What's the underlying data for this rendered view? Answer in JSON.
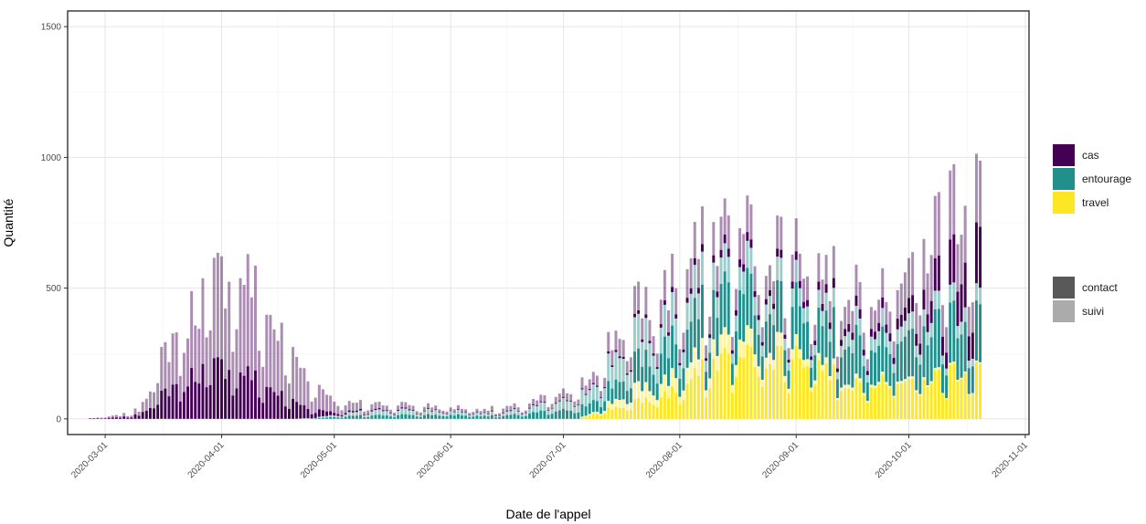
{
  "chart_data": {
    "type": "bar",
    "stacked": true,
    "xlabel": "Date de l'appel",
    "ylabel": "Quantité",
    "ylim": [
      -60,
      1560
    ],
    "xlim": [
      "2020-02-20",
      "2020-11-02"
    ],
    "y_ticks": [
      0,
      500,
      1000,
      1500
    ],
    "x_ticks": [
      "2020-03-01",
      "2020-04-01",
      "2020-05-01",
      "2020-06-01",
      "2020-07-01",
      "2020-08-01",
      "2020-09-01",
      "2020-10-01",
      "2020-11-01"
    ],
    "grid": true,
    "theme": "bw",
    "legend_position": "right",
    "legend_fill": {
      "entries": [
        {
          "label": "cas",
          "color": "#440154"
        },
        {
          "label": "entourage",
          "color": "#21908C"
        },
        {
          "label": "travel",
          "color": "#FDE725"
        }
      ]
    },
    "legend_alpha": {
      "entries": [
        {
          "label": "contact",
          "color": "#595959"
        },
        {
          "label": "suivi",
          "color": "#ababab"
        }
      ]
    },
    "suivi_alpha": 0.45,
    "date_range": [
      "2020-02-26",
      "2020-10-20"
    ],
    "series_order": [
      "travel-contact",
      "travel-suivi",
      "entourage-contact",
      "entourage-suivi",
      "cas-contact",
      "cas-suivi"
    ],
    "series_colors": {
      "cas": "#440154",
      "entourage": "#21908C",
      "travel": "#FDE725"
    },
    "anchors": {
      "cas-suivi": [
        [
          "2020-02-26",
          1
        ],
        [
          "2020-03-05",
          8
        ],
        [
          "2020-03-10",
          20
        ],
        [
          "2020-03-16",
          140
        ],
        [
          "2020-03-22",
          220
        ],
        [
          "2020-03-28",
          300
        ],
        [
          "2020-04-03",
          360
        ],
        [
          "2020-04-07",
          380
        ],
        [
          "2020-04-12",
          290
        ],
        [
          "2020-04-18",
          200
        ],
        [
          "2020-04-24",
          120
        ],
        [
          "2020-04-30",
          60
        ],
        [
          "2020-05-05",
          30
        ],
        [
          "2020-05-15",
          20
        ],
        [
          "2020-06-01",
          12
        ],
        [
          "2020-06-20",
          15
        ],
        [
          "2020-07-05",
          30
        ],
        [
          "2020-07-15",
          70
        ],
        [
          "2020-07-25",
          100
        ],
        [
          "2020-08-05",
          110
        ],
        [
          "2020-08-15",
          120
        ],
        [
          "2020-08-25",
          110
        ],
        [
          "2020-09-10",
          100
        ],
        [
          "2020-09-25",
          110
        ],
        [
          "2020-10-05",
          180
        ],
        [
          "2020-10-12",
          230
        ],
        [
          "2020-10-20",
          240
        ]
      ],
      "cas-contact": [
        [
          "2020-02-26",
          1
        ],
        [
          "2020-03-05",
          5
        ],
        [
          "2020-03-10",
          15
        ],
        [
          "2020-03-16",
          90
        ],
        [
          "2020-03-22",
          150
        ],
        [
          "2020-03-28",
          190
        ],
        [
          "2020-04-03",
          200
        ],
        [
          "2020-04-07",
          180
        ],
        [
          "2020-04-12",
          130
        ],
        [
          "2020-04-18",
          80
        ],
        [
          "2020-04-24",
          40
        ],
        [
          "2020-04-30",
          15
        ],
        [
          "2020-05-05",
          5
        ],
        [
          "2020-06-01",
          2
        ],
        [
          "2020-07-05",
          3
        ],
        [
          "2020-07-20",
          10
        ],
        [
          "2020-08-05",
          20
        ],
        [
          "2020-08-15",
          30
        ],
        [
          "2020-08-25",
          25
        ],
        [
          "2020-09-10",
          30
        ],
        [
          "2020-09-25",
          40
        ],
        [
          "2020-10-05",
          70
        ],
        [
          "2020-10-12",
          150
        ],
        [
          "2020-10-20",
          220
        ]
      ],
      "entourage-suivi": [
        [
          "2020-02-26",
          0
        ],
        [
          "2020-04-20",
          0
        ],
        [
          "2020-05-01",
          8
        ],
        [
          "2020-05-15",
          20
        ],
        [
          "2020-06-01",
          15
        ],
        [
          "2020-06-15",
          10
        ],
        [
          "2020-06-25",
          25
        ],
        [
          "2020-07-05",
          40
        ],
        [
          "2020-07-15",
          100
        ],
        [
          "2020-07-25",
          110
        ],
        [
          "2020-08-05",
          100
        ],
        [
          "2020-08-15",
          90
        ],
        [
          "2020-08-25",
          80
        ],
        [
          "2020-09-10",
          60
        ],
        [
          "2020-09-25",
          70
        ],
        [
          "2020-10-05",
          60
        ],
        [
          "2020-10-20",
          60
        ]
      ],
      "entourage-contact": [
        [
          "2020-02-26",
          0
        ],
        [
          "2020-04-25",
          0
        ],
        [
          "2020-05-01",
          8
        ],
        [
          "2020-05-15",
          15
        ],
        [
          "2020-06-01",
          15
        ],
        [
          "2020-06-15",
          10
        ],
        [
          "2020-06-25",
          25
        ],
        [
          "2020-07-05",
          35
        ],
        [
          "2020-07-15",
          70
        ],
        [
          "2020-07-25",
          120
        ],
        [
          "2020-08-05",
          150
        ],
        [
          "2020-08-15",
          190
        ],
        [
          "2020-08-25",
          170
        ],
        [
          "2020-09-10",
          160
        ],
        [
          "2020-09-25",
          170
        ],
        [
          "2020-10-05",
          180
        ],
        [
          "2020-10-12",
          200
        ],
        [
          "2020-10-20",
          210
        ]
      ],
      "travel-suivi": [
        [
          "2020-02-26",
          0
        ],
        [
          "2020-07-05",
          0
        ],
        [
          "2020-07-10",
          10
        ],
        [
          "2020-07-20",
          50
        ],
        [
          "2020-08-01",
          60
        ],
        [
          "2020-08-15",
          70
        ],
        [
          "2020-08-25",
          50
        ],
        [
          "2020-09-10",
          20
        ],
        [
          "2020-09-25",
          10
        ],
        [
          "2020-10-20",
          5
        ]
      ],
      "travel-contact": [
        [
          "2020-02-26",
          0
        ],
        [
          "2020-07-05",
          0
        ],
        [
          "2020-07-10",
          25
        ],
        [
          "2020-07-20",
          60
        ],
        [
          "2020-08-01",
          110
        ],
        [
          "2020-08-12",
          230
        ],
        [
          "2020-08-25",
          240
        ],
        [
          "2020-09-05",
          230
        ],
        [
          "2020-09-15",
          130
        ],
        [
          "2020-09-25",
          170
        ],
        [
          "2020-10-05",
          140
        ],
        [
          "2020-10-12",
          180
        ],
        [
          "2020-10-20",
          200
        ]
      ]
    }
  }
}
